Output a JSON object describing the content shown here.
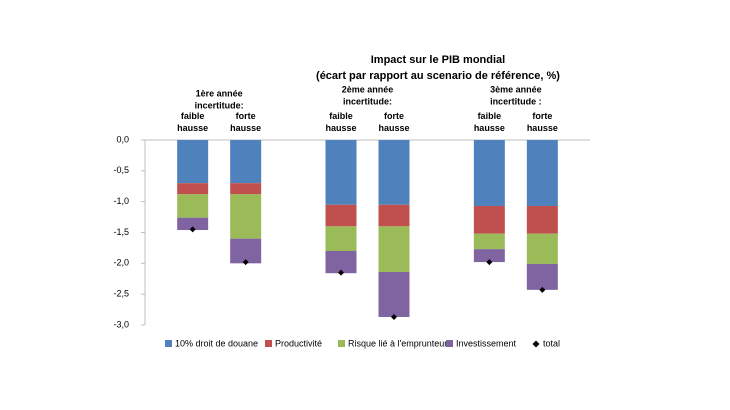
{
  "chart_data": {
    "type": "stacked-bar",
    "title": "Impact sur le PIB mondial",
    "subtitle": "(écart par rapport au scenario de référence, %)",
    "groups": [
      [
        "1ère année",
        "incertitude:"
      ],
      [
        "2ème année",
        "incertitude:"
      ],
      [
        "3ème année",
        "incertitude :"
      ]
    ],
    "categories": [
      "faible hausse",
      "forte hausse",
      "faible hausse",
      "forte hausse",
      "faible hausse",
      "forte hausse"
    ],
    "series": [
      {
        "name": "10% droit de douane",
        "color": "#4f81bd",
        "values": [
          -0.7,
          -0.7,
          -1.05,
          -1.05,
          -1.07,
          -1.07
        ]
      },
      {
        "name": "Productivité",
        "color": "#c0504d",
        "values": [
          -0.18,
          -0.18,
          -0.35,
          -0.35,
          -0.45,
          -0.45
        ]
      },
      {
        "name": "Risque lié à l'emprunteur",
        "color": "#9bbb59",
        "values": [
          -0.38,
          -0.72,
          -0.4,
          -0.74,
          -0.25,
          -0.49
        ]
      },
      {
        "name": "Investissement",
        "color": "#8064a2",
        "values": [
          -0.2,
          -0.4,
          -0.36,
          -0.73,
          -0.21,
          -0.42
        ]
      }
    ],
    "total": {
      "name": "total",
      "color": "#000000",
      "values": [
        -1.45,
        -1.98,
        -2.15,
        -2.87,
        -1.98,
        -2.43
      ]
    },
    "ylim": [
      -3.0,
      0.0
    ],
    "yticks": [
      {
        "value": 0,
        "label": "0,0"
      },
      {
        "value": -0.5,
        "label": "-0,5"
      },
      {
        "value": -1,
        "label": "-1,0"
      },
      {
        "value": -1.5,
        "label": "-1,5"
      },
      {
        "value": -2,
        "label": "-2,0"
      },
      {
        "value": -2.5,
        "label": "-2,5"
      },
      {
        "value": -3,
        "label": "-3,0"
      }
    ],
    "grid": false
  }
}
